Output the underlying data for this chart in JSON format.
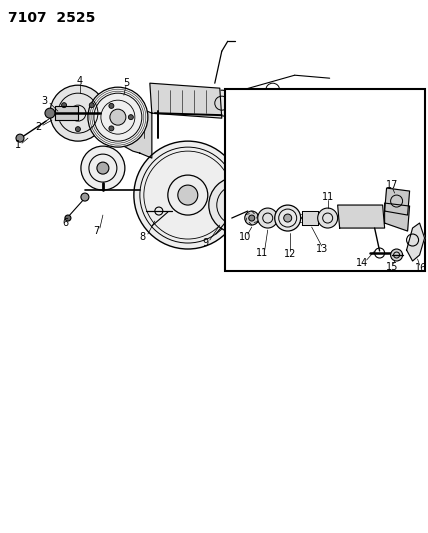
{
  "title": "7107  2525",
  "bg_color": "#ffffff",
  "line_color": "#000000",
  "title_fontsize": 10,
  "label_fontsize": 7,
  "fig_width": 4.28,
  "fig_height": 5.33,
  "dpi": 100
}
